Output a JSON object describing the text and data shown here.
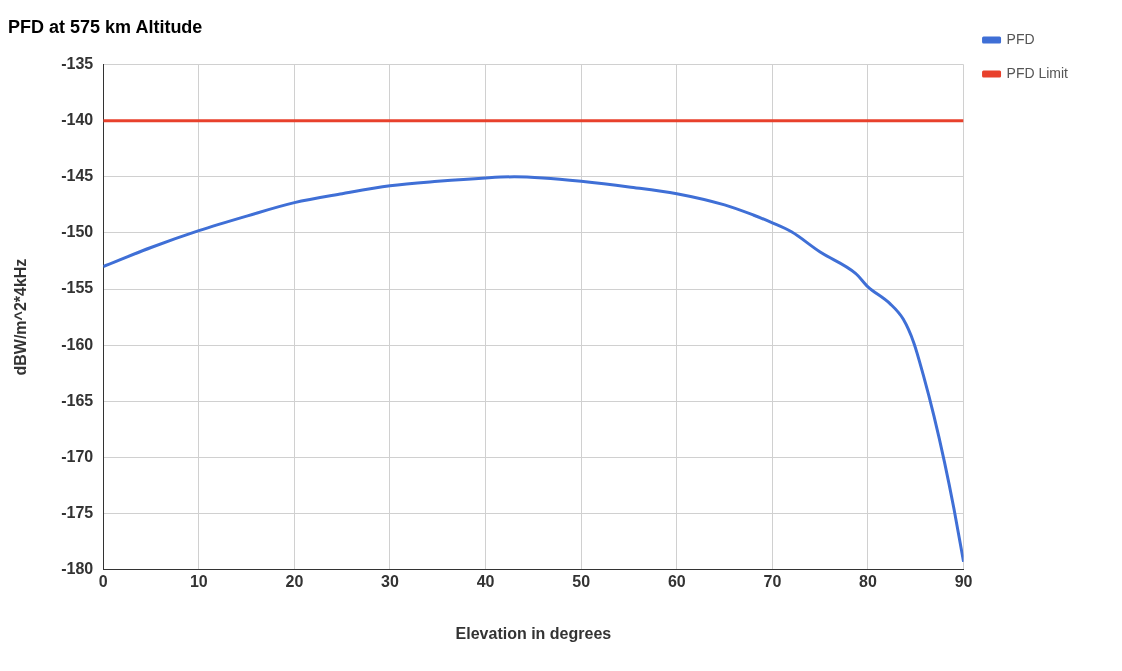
{
  "chart_data": {
    "type": "line",
    "title": "PFD at 575 km Altitude",
    "xlabel": "Elevation in degrees",
    "ylabel": "dBW/m^2*4kHz",
    "xlim": [
      0,
      90
    ],
    "xticks": [
      0,
      10,
      20,
      30,
      40,
      50,
      60,
      70,
      80,
      90
    ],
    "ylim": [
      -180,
      -135
    ],
    "yticks": [
      -180,
      -175,
      -170,
      -165,
      -160,
      -155,
      -150,
      -145,
      -140,
      -135
    ],
    "grid": true,
    "legend": "top right",
    "marker": "none",
    "series": [
      {
        "name": "PFD",
        "color": "#3f6fd6",
        "x": [
          0,
          5,
          10,
          15,
          20,
          25,
          30,
          35,
          40,
          43,
          46,
          50,
          55,
          60,
          65,
          68,
          70,
          72,
          75,
          78.7,
          80,
          82.3,
          83.7,
          84.8,
          85.8,
          86.9,
          88,
          89,
          90
        ],
        "values": [
          -153.0,
          -151.3,
          -149.8,
          -148.5,
          -147.3,
          -146.5,
          -145.8,
          -145.4,
          -145.1,
          -145.0,
          -145.1,
          -145.4,
          -145.9,
          -146.5,
          -147.5,
          -148.4,
          -149.1,
          -149.9,
          -151.7,
          -153.6,
          -154.8,
          -156.3,
          -157.7,
          -159.8,
          -162.7,
          -166.3,
          -170.4,
          -174.6,
          -179.3
        ]
      },
      {
        "name": "PFD Limit",
        "color": "#e8412c",
        "x": [
          0,
          90
        ],
        "values": [
          -140,
          -140
        ]
      }
    ]
  }
}
